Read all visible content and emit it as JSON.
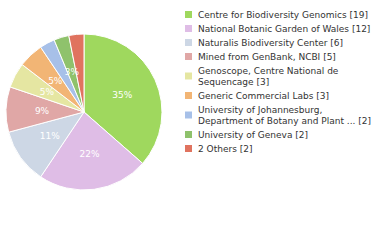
{
  "chart_data": {
    "type": "pie",
    "categories": [
      "Centre for Biodiversity Genomics [19]",
      "National Botanic Garden of Wales [12]",
      "Naturalis Biodiversity Center [6]",
      "Mined from GenBank, NCBI [5]",
      "Genoscope, Centre National de Sequencage [3]",
      "Generic Commercial Labs [3]",
      "University of Johannesburg, Department of Botany and Plant ... [2]",
      "University of Geneva [2]",
      "2 Others [2]"
    ],
    "values": [
      35,
      22,
      11,
      9,
      5,
      5,
      3,
      3,
      3
    ],
    "value_labels": [
      "35%",
      "22%",
      "11%",
      "9%",
      "5%",
      "5%",
      "3%",
      "3%",
      "3%"
    ],
    "colors": [
      "#9fd85e",
      "#dfbde6",
      "#cdd7e5",
      "#e0a7a6",
      "#e5e6a2",
      "#f2b575",
      "#a7c0e8",
      "#8fc26c",
      "#e0735f"
    ],
    "data_labels": true,
    "legend": "right"
  }
}
